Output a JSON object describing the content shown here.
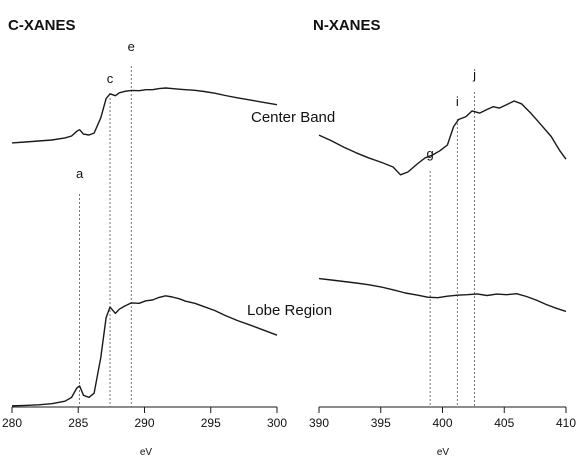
{
  "chart_data": [
    {
      "id": "c",
      "type": "line",
      "title": "C-XANES",
      "xlabel": "eV",
      "ylabel": "",
      "xlim": [
        280,
        300
      ],
      "ylim": [
        0,
        10
      ],
      "xticks": [
        280,
        285,
        290,
        295,
        300
      ],
      "peak_markers": [
        {
          "label": "a",
          "x": 285.1
        },
        {
          "label": "c",
          "x": 287.4
        },
        {
          "label": "e",
          "x": 289.0
        }
      ],
      "curve_labels": [
        {
          "text": "Center Band",
          "series": "center"
        },
        {
          "text": "Lobe Region",
          "series": "lobe"
        }
      ],
      "series": [
        {
          "id": "center",
          "x": [
            280,
            281,
            282,
            283,
            284,
            284.5,
            284.9,
            285.1,
            285.4,
            285.8,
            286.2,
            286.7,
            287.1,
            287.4,
            287.8,
            288.1,
            288.5,
            289.0,
            289.6,
            290.1,
            290.6,
            291.1,
            291.6,
            292.1,
            292.6,
            293.1,
            293.8,
            294.5,
            295.3,
            296.1,
            297.0,
            298.0,
            299.0,
            300.0
          ],
          "y": [
            4.28,
            4.38,
            4.48,
            4.58,
            4.8,
            5.0,
            5.5,
            5.66,
            5.2,
            5.1,
            5.3,
            6.9,
            8.9,
            9.4,
            9.2,
            9.5,
            9.65,
            9.75,
            9.72,
            9.82,
            9.82,
            9.94,
            10.0,
            9.94,
            9.88,
            9.82,
            9.76,
            9.64,
            9.46,
            9.22,
            8.98,
            8.74,
            8.5,
            8.26
          ]
        },
        {
          "id": "lobe",
          "x": [
            280,
            281,
            282,
            283,
            284,
            284.5,
            284.9,
            285.1,
            285.4,
            285.8,
            286.2,
            286.7,
            287.1,
            287.4,
            287.8,
            288.1,
            288.5,
            289.0,
            289.6,
            290.1,
            290.6,
            291.1,
            291.6,
            292.1,
            292.6,
            293.1,
            293.8,
            294.5,
            295.3,
            296.1,
            297.0,
            298.0,
            299.0,
            300.0
          ],
          "y": [
            0.2,
            0.22,
            0.25,
            0.3,
            0.42,
            0.6,
            1.05,
            1.15,
            0.7,
            0.6,
            0.8,
            2.5,
            4.4,
            4.9,
            4.6,
            4.8,
            4.95,
            5.1,
            5.08,
            5.2,
            5.24,
            5.36,
            5.44,
            5.38,
            5.3,
            5.18,
            5.08,
            4.92,
            4.74,
            4.5,
            4.26,
            4.04,
            3.8,
            3.56
          ]
        }
      ]
    },
    {
      "id": "n",
      "type": "line",
      "title": "N-XANES",
      "xlabel": "eV",
      "ylabel": "",
      "xlim": [
        390,
        410
      ],
      "ylim": [
        0,
        10
      ],
      "xticks": [
        390,
        395,
        400,
        405,
        410
      ],
      "peak_markers": [
        {
          "label": "g",
          "x": 399.0
        },
        {
          "label": "i",
          "x": 401.2
        },
        {
          "label": "j",
          "x": 402.6
        }
      ],
      "curve_labels": [],
      "series": [
        {
          "id": "center",
          "x": [
            390,
            391,
            392,
            393,
            394,
            395,
            396,
            396.6,
            397.2,
            398.0,
            398.6,
            399.2,
            399.8,
            400.4,
            400.9,
            401.3,
            401.9,
            402.4,
            403.0,
            403.6,
            404.1,
            404.6,
            405.2,
            405.8,
            406.4,
            407.2,
            408.0,
            408.8,
            409.5,
            410.0
          ],
          "y": [
            7.6,
            7.2,
            6.75,
            6.35,
            6.0,
            5.7,
            5.35,
            4.8,
            5.0,
            5.6,
            6.0,
            6.2,
            6.5,
            6.9,
            8.2,
            8.7,
            8.9,
            9.3,
            9.15,
            9.4,
            9.6,
            9.5,
            9.75,
            10.0,
            9.8,
            9.1,
            8.3,
            7.5,
            6.5,
            5.9
          ]
        },
        {
          "id": "lobe",
          "x": [
            390,
            391,
            392,
            393,
            394,
            395,
            396,
            397,
            398,
            398.8,
            399.6,
            400.4,
            401.2,
            402.0,
            402.8,
            403.6,
            404.4,
            405.2,
            406.0,
            406.8,
            407.6,
            408.4,
            409.2,
            410.0
          ],
          "y": [
            5.25,
            5.1,
            4.95,
            4.8,
            4.62,
            4.4,
            4.1,
            3.78,
            3.55,
            3.35,
            3.3,
            3.45,
            3.55,
            3.6,
            3.68,
            3.52,
            3.66,
            3.6,
            3.7,
            3.42,
            3.05,
            2.6,
            2.22,
            1.9
          ]
        }
      ]
    }
  ]
}
